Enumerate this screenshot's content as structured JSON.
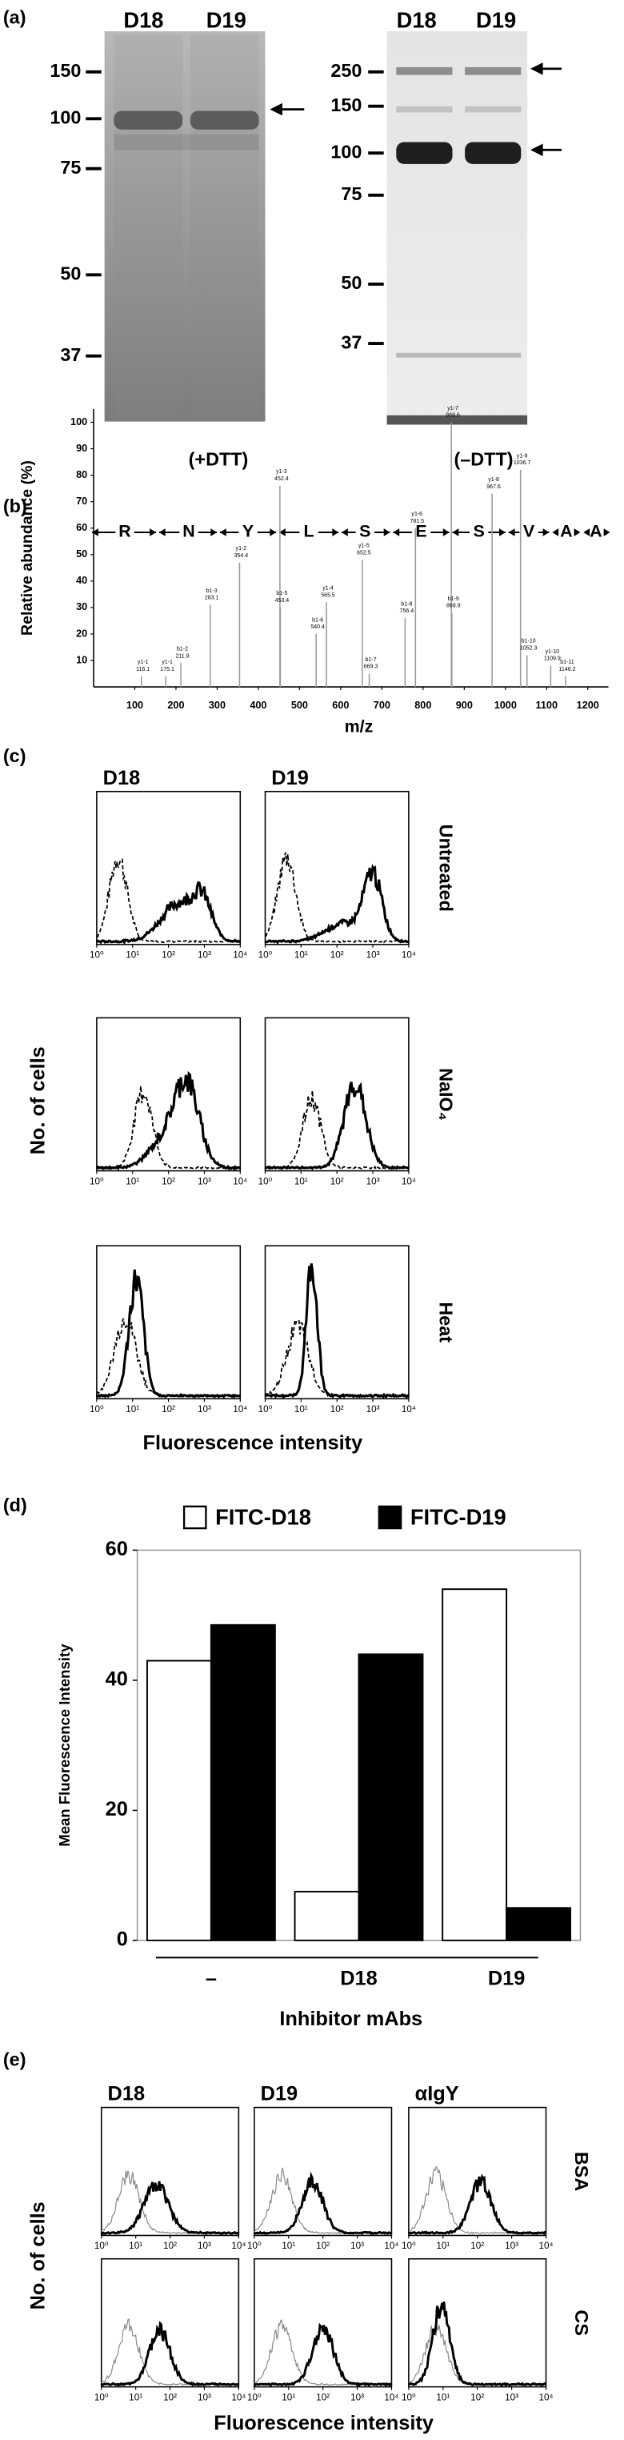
{
  "panels": {
    "a": {
      "label": "(a)",
      "left_gel": {
        "lanes": [
          "D18",
          "D19"
        ],
        "markers": [
          150,
          100,
          75,
          50,
          37
        ],
        "condition": "(+DTT)"
      },
      "right_gel": {
        "lanes": [
          "D18",
          "D19"
        ],
        "markers": [
          250,
          150,
          100,
          75,
          50,
          37
        ],
        "condition": "(–DTT)"
      }
    },
    "b": {
      "label": "(b)"
    },
    "c": {
      "label": "(c)",
      "columns": [
        "D18",
        "D19"
      ],
      "rows": [
        "Untreated",
        "NaIO₄",
        "Heat"
      ],
      "xticks": [
        "10⁰",
        "10¹",
        "10²",
        "10³",
        "10⁴"
      ],
      "xlabel": "Fluorescence intensity",
      "ylabel": "No. of cells"
    },
    "d": {
      "label": "(d)"
    },
    "e": {
      "label": "(e)",
      "columns": [
        "D18",
        "D19",
        "αIgY"
      ],
      "rows": [
        "BSA",
        "CS"
      ],
      "xticks": [
        "10⁰",
        "10¹",
        "10²",
        "10³",
        "10⁴"
      ],
      "xlabel": "Fluorescence intensity",
      "ylabel": "No. of cells"
    }
  },
  "chart_data": [
    {
      "type": "spectrum",
      "sequence": [
        "R",
        "N",
        "Y",
        "L",
        "S",
        "E",
        "S",
        "V",
        "A",
        "A"
      ],
      "ylabel": "Relative abundance (%)",
      "xlabel": "m/z",
      "xlim": [
        0,
        1250
      ],
      "ylim": [
        0,
        105
      ],
      "xticks": [
        100,
        200,
        300,
        400,
        500,
        600,
        700,
        800,
        900,
        1000,
        1100,
        1200
      ],
      "yticks": [
        10,
        20,
        30,
        40,
        50,
        60,
        70,
        80,
        90,
        100
      ],
      "color": "#9a9a9a",
      "peak_labels": [
        "y1-1",
        "y1-1",
        "b1-2",
        "b1-3",
        "y1-2",
        "y1-3",
        "b1-5",
        "b1-6",
        "y1-4",
        "y1-5",
        "b1-7",
        "b1-8",
        "y1-6",
        "y1-7",
        "b1-9",
        "y1-8",
        "y1-9",
        "b1-10",
        "y1-10",
        "b1-11"
      ],
      "x": [
        116.1,
        175.1,
        211.9,
        283.1,
        354.4,
        452.4,
        453.4,
        540.4,
        565.5,
        652.5,
        669.3,
        756.4,
        781.5,
        868.6,
        869.9,
        967.6,
        1036.7,
        1052.3,
        1109.9,
        1146.2
      ],
      "values": [
        4,
        4,
        9,
        31,
        47,
        76,
        30,
        20,
        32,
        48,
        5,
        26,
        60,
        100,
        28,
        73,
        82,
        12,
        8,
        4
      ]
    },
    {
      "type": "bar",
      "categories": [
        "–",
        "D18",
        "D19"
      ],
      "series": [
        {
          "name": "FITC-D18",
          "color": "#ffffff",
          "values": [
            43,
            7.5,
            54
          ]
        },
        {
          "name": "FITC-D19",
          "color": "#000000",
          "values": [
            48.5,
            44,
            5
          ]
        }
      ],
      "ylim": [
        0,
        60
      ],
      "yticks": [
        0,
        20,
        40,
        60
      ],
      "xlabel": "Inhibitor mAbs",
      "ylabel": "Mean Fluorescence Intensity"
    }
  ]
}
